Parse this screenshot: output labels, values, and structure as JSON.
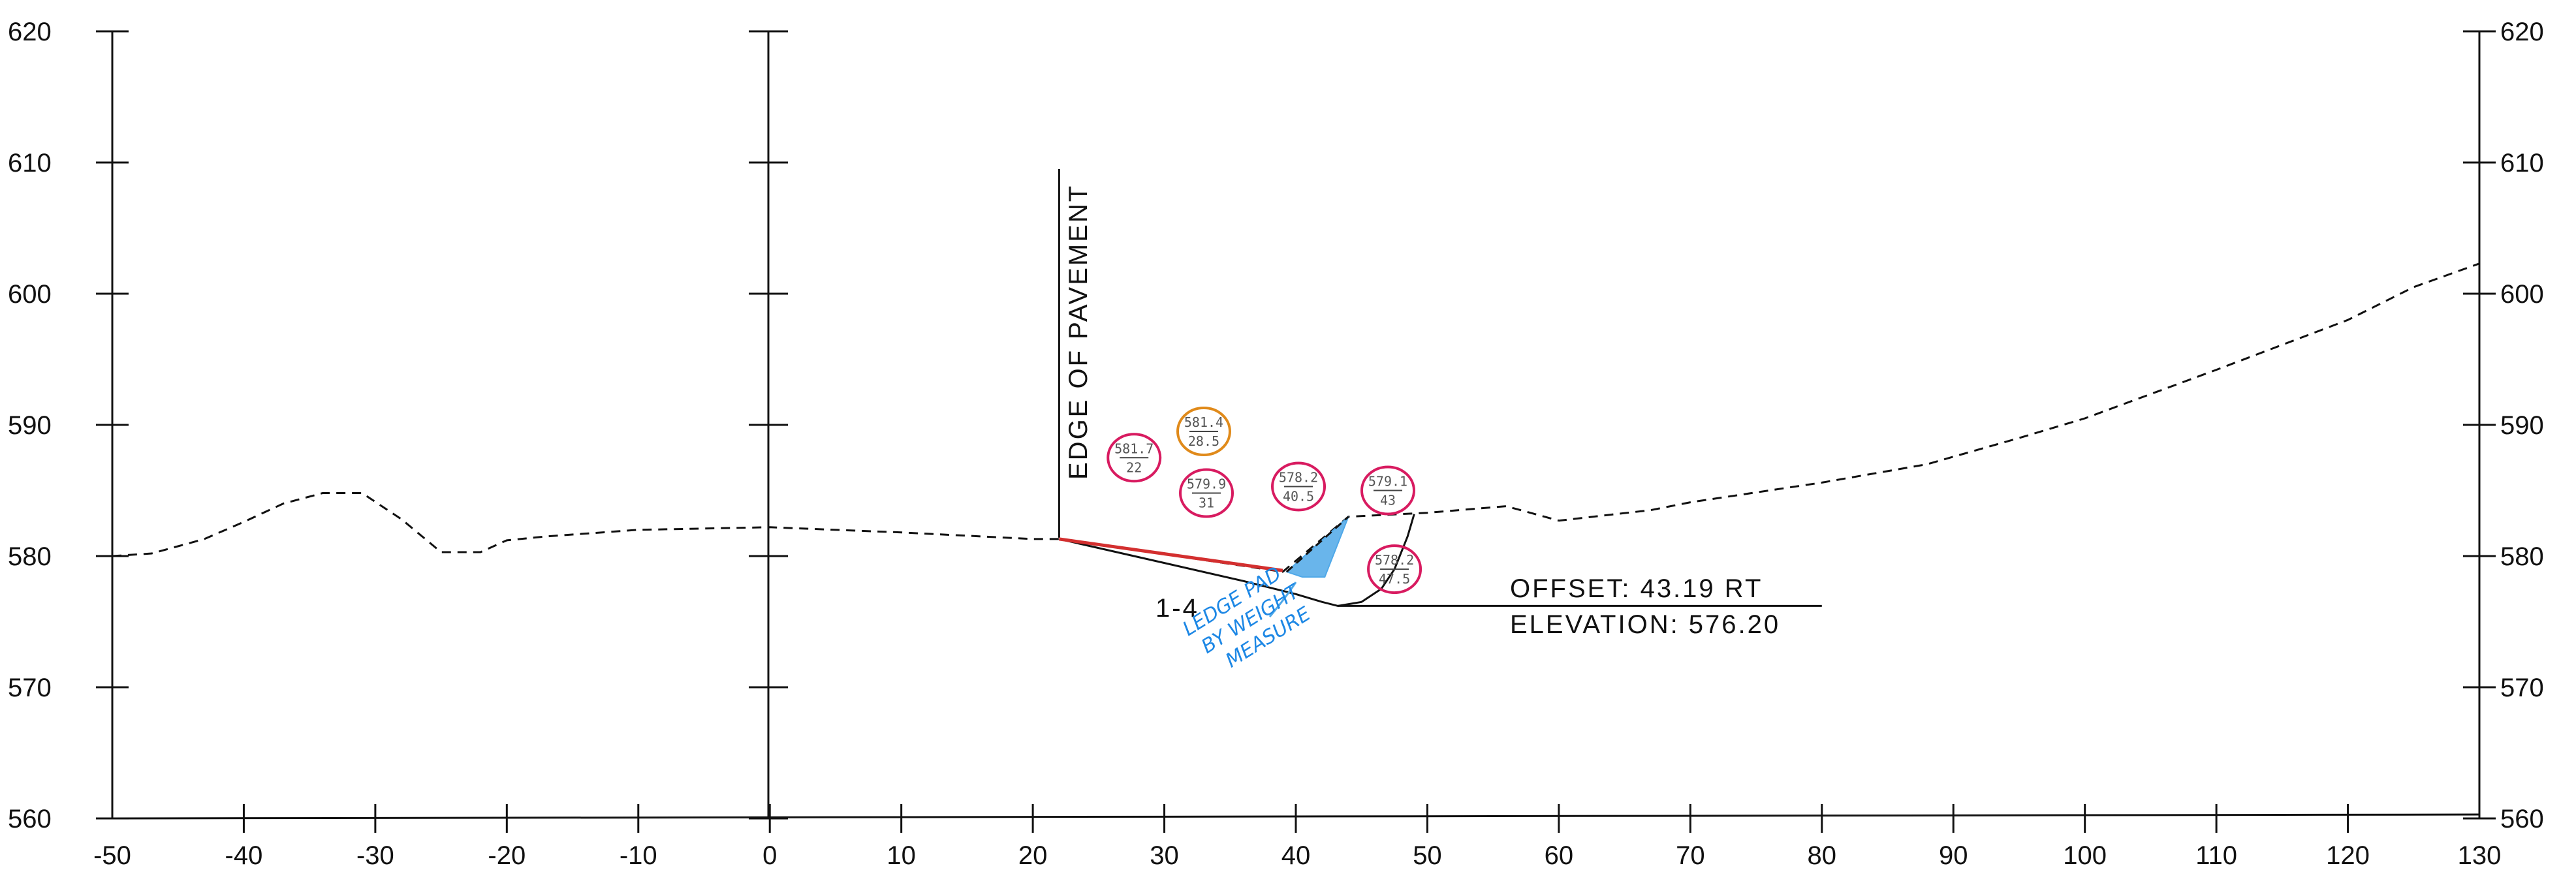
{
  "drawing": {
    "x_ticks": [
      "-50",
      "-40",
      "-30",
      "-20",
      "-10",
      "0",
      "10",
      "20",
      "30",
      "40",
      "50",
      "60",
      "70",
      "80",
      "90",
      "100",
      "110",
      "120",
      "130"
    ],
    "y_ticks": [
      "560",
      "570",
      "580",
      "590",
      "600",
      "610",
      "620"
    ],
    "edge_label": "EDGE OF PAVEMENT",
    "slope_label": "1-4",
    "offset_text": "OFFSET: 43.19 RT",
    "elevation_text": "ELEVATION: 576.20",
    "handwritten_note": [
      "LEDGE PAD",
      "BY WEIGHT",
      "MEASURE"
    ],
    "colors": {
      "line": "#111111",
      "ledge_fill": "#4fa8e8",
      "pin_circle": "#d81b60",
      "pin_orange": "#e08a1a",
      "red_mark": "#d32f2f"
    },
    "markers": [
      {
        "top": "581.7",
        "bottom": "22"
      },
      {
        "top": "581.4",
        "bottom": "28.5"
      },
      {
        "top": "579.9",
        "bottom": "31"
      },
      {
        "top": "578.2",
        "bottom": "40.5"
      },
      {
        "top": "579.1",
        "bottom": "43"
      },
      {
        "top": "578.2",
        "bottom": "47.5"
      }
    ]
  },
  "chart_data": {
    "type": "line",
    "xlim": [
      -50,
      130
    ],
    "ylim": [
      560,
      620
    ],
    "grid": false,
    "series": [
      {
        "style": "dashed",
        "x": [
          -50,
          -47,
          -43,
          -40,
          -37,
          -34,
          -31,
          -28,
          -25,
          -22,
          -20,
          -17,
          -10,
          0,
          10,
          20,
          22,
          31,
          39,
          44,
          50,
          56,
          60,
          67,
          70,
          80,
          88,
          95,
          100,
          110,
          120,
          125,
          130
        ],
        "y": [
          580,
          580.2,
          581.3,
          582.6,
          584,
          584.8,
          584.8,
          582.8,
          580.3,
          580.3,
          581.2,
          581.5,
          582,
          582.2,
          581.8,
          581.3,
          581.3,
          580,
          578.8,
          583,
          583.3,
          583.8,
          582.7,
          583.5,
          584.1,
          585.6,
          587,
          589,
          590.5,
          594.2,
          598,
          600.5,
          602.3
        ]
      },
      {
        "style": "solid",
        "x": [
          22,
          29,
          36,
          40,
          42,
          43.2,
          45,
          46.5,
          47.5,
          48.5,
          49
        ],
        "y": [
          581.3,
          579.7,
          578.1,
          577.1,
          576.5,
          576.2,
          576.5,
          577.5,
          579,
          581.5,
          583.2
        ]
      }
    ]
  }
}
